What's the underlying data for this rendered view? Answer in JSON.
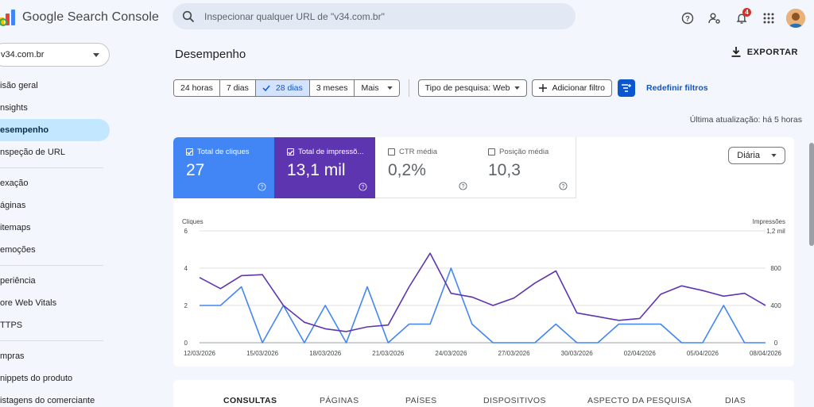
{
  "header": {
    "app_name": "Google Search Console",
    "search_placeholder": "Inspecionar qualquer URL de \"v34.com.br\"",
    "notifications_count": "4"
  },
  "sidebar": {
    "property": "v34.com.br",
    "groups": [
      [
        "isão geral",
        "nsights",
        "esempenho",
        "nspeção de URL"
      ],
      [
        "exação",
        "áginas",
        "itemaps",
        "emoções"
      ],
      [
        "periência",
        "ore Web Vitals",
        "TTPS"
      ],
      [
        "mpras",
        "nippets do produto",
        "istagens do comerciante"
      ]
    ],
    "active": "esempenho"
  },
  "main": {
    "title": "Desempenho",
    "export_label": "EXPORTAR",
    "date_ranges": [
      "24 horas",
      "7 dias",
      "28 dias",
      "3 meses",
      "Mais"
    ],
    "selected_range": "28 dias",
    "search_type": "Tipo de pesquisa: Web",
    "add_filter": "Adicionar filtro",
    "reset_filters": "Redefinir filtros",
    "last_update": "Última atualização: há 5 horas",
    "granularity": "Diária"
  },
  "metrics": [
    {
      "label": "Total de cliques",
      "value": "27",
      "checked": true,
      "color": "#4285f4"
    },
    {
      "label": "Total de impressõ...",
      "value": "13,1 mil",
      "checked": true,
      "color": "#5e35b1"
    },
    {
      "label": "CTR média",
      "value": "0,2%",
      "checked": false,
      "color": "#ffffff"
    },
    {
      "label": "Posição média",
      "value": "10,3",
      "checked": false,
      "color": "#ffffff"
    }
  ],
  "chart_data": {
    "type": "line",
    "left_axis_label": "Cliques",
    "right_axis_label": "Impressões",
    "left_ticks": [
      "6",
      "4",
      "2",
      "0"
    ],
    "left_tick_values": [
      6,
      4,
      2,
      0
    ],
    "right_ticks": [
      "1,2 mil",
      "800",
      "400",
      "0"
    ],
    "right_tick_values": [
      1200,
      800,
      400,
      0
    ],
    "ylim_left": [
      0,
      6
    ],
    "ylim_right": [
      0,
      1200
    ],
    "x_ticks": [
      "12/03/2026",
      "15/03/2026",
      "18/03/2026",
      "21/03/2026",
      "24/03/2026",
      "27/03/2026",
      "30/03/2026",
      "02/04/2026",
      "05/04/2026",
      "08/04/2026"
    ],
    "x_tick_indices": [
      0,
      3,
      6,
      9,
      12,
      15,
      18,
      21,
      24,
      27
    ],
    "series": [
      {
        "name": "Total de cliques",
        "axis": "left",
        "color": "#4285f4",
        "values": [
          2,
          2,
          3,
          0,
          2,
          0,
          2,
          0,
          3,
          0,
          1,
          1,
          4,
          1,
          0,
          0,
          0,
          1,
          0,
          0,
          1,
          1,
          1,
          0,
          0,
          2,
          0,
          0
        ]
      },
      {
        "name": "Total de impressões",
        "axis": "right",
        "color": "#5e35b1",
        "values": [
          700,
          580,
          720,
          730,
          400,
          220,
          150,
          120,
          170,
          190,
          600,
          960,
          530,
          490,
          400,
          480,
          640,
          770,
          320,
          280,
          240,
          260,
          520,
          610,
          560,
          500,
          530,
          400
        ]
      }
    ],
    "grid": true
  },
  "tabs": [
    "CONSULTAS",
    "PÁGINAS",
    "PAÍSES",
    "DISPOSITIVOS",
    "ASPECTO DA PESQUISA",
    "DIAS"
  ],
  "active_tab": "CONSULTAS"
}
